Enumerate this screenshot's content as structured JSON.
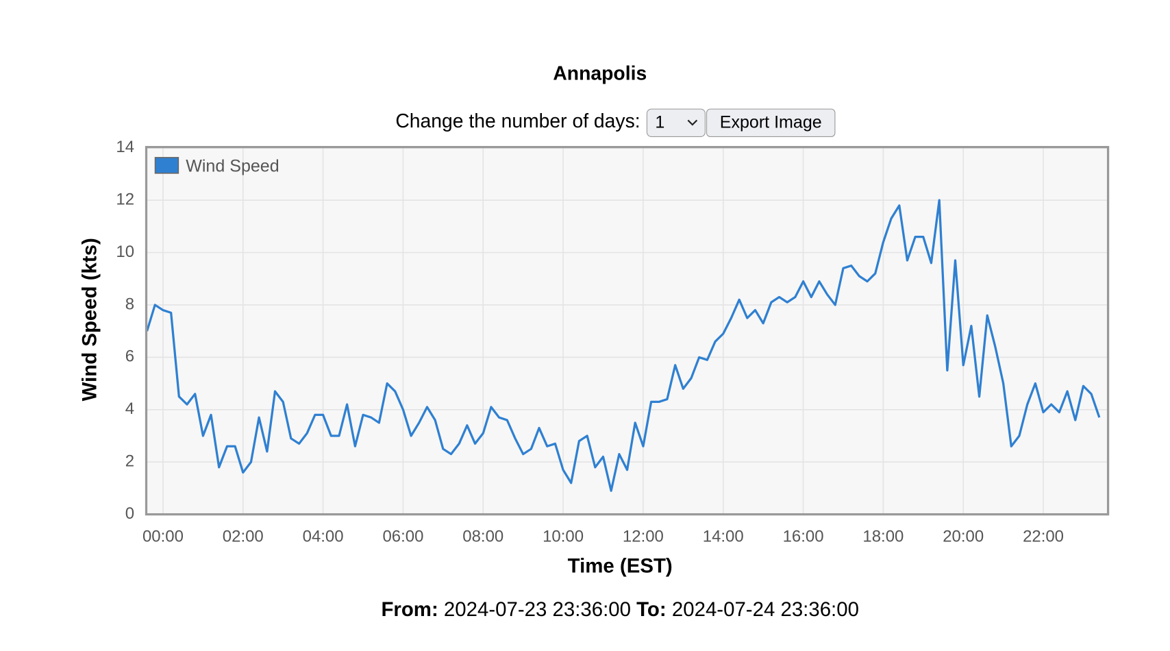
{
  "header": {
    "title": "Annapolis"
  },
  "controls": {
    "days_label": "Change the number of days:",
    "days_value": "1",
    "export_button": "Export Image"
  },
  "chart_data": {
    "type": "line",
    "x_label": "Time (EST)",
    "y_label": "Wind Speed (kts)",
    "x": [
      "2024-07-23T23:36",
      "2024-07-23T23:48",
      "2024-07-24T00:00",
      "2024-07-24T00:12",
      "2024-07-24T00:24",
      "2024-07-24T00:36",
      "2024-07-24T00:48",
      "2024-07-24T01:00",
      "2024-07-24T01:12",
      "2024-07-24T01:24",
      "2024-07-24T01:36",
      "2024-07-24T01:48",
      "2024-07-24T02:00",
      "2024-07-24T02:12",
      "2024-07-24T02:24",
      "2024-07-24T02:36",
      "2024-07-24T02:48",
      "2024-07-24T03:00",
      "2024-07-24T03:12",
      "2024-07-24T03:24",
      "2024-07-24T03:36",
      "2024-07-24T03:48",
      "2024-07-24T04:00",
      "2024-07-24T04:12",
      "2024-07-24T04:24",
      "2024-07-24T04:36",
      "2024-07-24T04:48",
      "2024-07-24T05:00",
      "2024-07-24T05:12",
      "2024-07-24T05:24",
      "2024-07-24T05:36",
      "2024-07-24T05:48",
      "2024-07-24T06:00",
      "2024-07-24T06:12",
      "2024-07-24T06:24",
      "2024-07-24T06:36",
      "2024-07-24T06:48",
      "2024-07-24T07:00",
      "2024-07-24T07:12",
      "2024-07-24T07:24",
      "2024-07-24T07:36",
      "2024-07-24T07:48",
      "2024-07-24T08:00",
      "2024-07-24T08:12",
      "2024-07-24T08:24",
      "2024-07-24T08:36",
      "2024-07-24T08:48",
      "2024-07-24T09:00",
      "2024-07-24T09:12",
      "2024-07-24T09:24",
      "2024-07-24T09:36",
      "2024-07-24T09:48",
      "2024-07-24T10:00",
      "2024-07-24T10:12",
      "2024-07-24T10:24",
      "2024-07-24T10:36",
      "2024-07-24T10:48",
      "2024-07-24T11:00",
      "2024-07-24T11:12",
      "2024-07-24T11:24",
      "2024-07-24T11:36",
      "2024-07-24T11:48",
      "2024-07-24T12:00",
      "2024-07-24T12:12",
      "2024-07-24T12:24",
      "2024-07-24T12:36",
      "2024-07-24T12:48",
      "2024-07-24T13:00",
      "2024-07-24T13:12",
      "2024-07-24T13:24",
      "2024-07-24T13:36",
      "2024-07-24T13:48",
      "2024-07-24T14:00",
      "2024-07-24T14:12",
      "2024-07-24T14:24",
      "2024-07-24T14:36",
      "2024-07-24T14:48",
      "2024-07-24T15:00",
      "2024-07-24T15:12",
      "2024-07-24T15:24",
      "2024-07-24T15:36",
      "2024-07-24T15:48",
      "2024-07-24T16:00",
      "2024-07-24T16:12",
      "2024-07-24T16:24",
      "2024-07-24T16:36",
      "2024-07-24T16:48",
      "2024-07-24T17:00",
      "2024-07-24T17:12",
      "2024-07-24T17:24",
      "2024-07-24T17:36",
      "2024-07-24T17:48",
      "2024-07-24T18:00",
      "2024-07-24T18:12",
      "2024-07-24T18:24",
      "2024-07-24T18:36",
      "2024-07-24T18:48",
      "2024-07-24T19:00",
      "2024-07-24T19:12",
      "2024-07-24T19:24",
      "2024-07-24T19:36",
      "2024-07-24T19:48",
      "2024-07-24T20:00",
      "2024-07-24T20:12",
      "2024-07-24T20:24",
      "2024-07-24T20:36",
      "2024-07-24T20:48",
      "2024-07-24T21:00",
      "2024-07-24T21:12",
      "2024-07-24T21:24",
      "2024-07-24T21:36",
      "2024-07-24T21:48",
      "2024-07-24T22:00",
      "2024-07-24T22:12",
      "2024-07-24T22:24",
      "2024-07-24T22:36",
      "2024-07-24T22:48",
      "2024-07-24T23:00",
      "2024-07-24T23:12",
      "2024-07-24T23:24"
    ],
    "series": [
      {
        "name": "Wind Speed",
        "color": "#2f80d1",
        "values": [
          7.0,
          8.0,
          7.8,
          7.7,
          4.5,
          4.2,
          4.6,
          3.0,
          3.8,
          1.8,
          2.6,
          2.6,
          1.6,
          2.0,
          3.7,
          2.4,
          4.7,
          4.3,
          2.9,
          2.7,
          3.1,
          3.8,
          3.8,
          3.0,
          3.0,
          4.2,
          2.6,
          3.8,
          3.7,
          3.5,
          5.0,
          4.7,
          4.0,
          3.0,
          3.5,
          4.1,
          3.6,
          2.5,
          2.3,
          2.7,
          3.4,
          2.7,
          3.1,
          4.1,
          3.7,
          3.6,
          2.9,
          2.3,
          2.5,
          3.3,
          2.6,
          2.7,
          1.7,
          1.2,
          2.8,
          3.0,
          1.8,
          2.2,
          0.9,
          2.3,
          1.7,
          3.5,
          2.6,
          4.3,
          4.3,
          4.4,
          5.7,
          4.8,
          5.2,
          6.0,
          5.9,
          6.6,
          6.9,
          7.5,
          8.2,
          7.5,
          7.8,
          7.3,
          8.1,
          8.3,
          8.1,
          8.3,
          8.9,
          8.3,
          8.9,
          8.4,
          8.0,
          9.4,
          9.5,
          9.1,
          8.9,
          9.2,
          10.4,
          11.3,
          11.8,
          9.7,
          10.6,
          10.6,
          9.6,
          12.0,
          5.5,
          9.7,
          5.7,
          7.2,
          4.5,
          7.6,
          6.4,
          5.0,
          2.6,
          3.0,
          4.2,
          5.0,
          3.9,
          4.2,
          3.9,
          4.7,
          3.6,
          4.9,
          4.6,
          3.7
        ]
      }
    ],
    "xlim": [
      "2024-07-23T23:36",
      "2024-07-24T23:36"
    ],
    "xticks": [
      {
        "value": "2024-07-24T00:00",
        "label": "00:00"
      },
      {
        "value": "2024-07-24T02:00",
        "label": "02:00"
      },
      {
        "value": "2024-07-24T04:00",
        "label": "04:00"
      },
      {
        "value": "2024-07-24T06:00",
        "label": "06:00"
      },
      {
        "value": "2024-07-24T08:00",
        "label": "08:00"
      },
      {
        "value": "2024-07-24T10:00",
        "label": "10:00"
      },
      {
        "value": "2024-07-24T12:00",
        "label": "12:00"
      },
      {
        "value": "2024-07-24T14:00",
        "label": "14:00"
      },
      {
        "value": "2024-07-24T16:00",
        "label": "16:00"
      },
      {
        "value": "2024-07-24T18:00",
        "label": "18:00"
      },
      {
        "value": "2024-07-24T20:00",
        "label": "20:00"
      },
      {
        "value": "2024-07-24T22:00",
        "label": "22:00"
      }
    ],
    "ylim": [
      0,
      14
    ],
    "yticks": [
      0,
      2,
      4,
      6,
      8,
      10,
      12,
      14
    ],
    "grid": true,
    "legend": "top-left"
  },
  "footer": {
    "from_label": "From:",
    "from": "2024-07-23 23:36:00",
    "to_label": "To:",
    "to": "2024-07-24 23:36:00"
  }
}
